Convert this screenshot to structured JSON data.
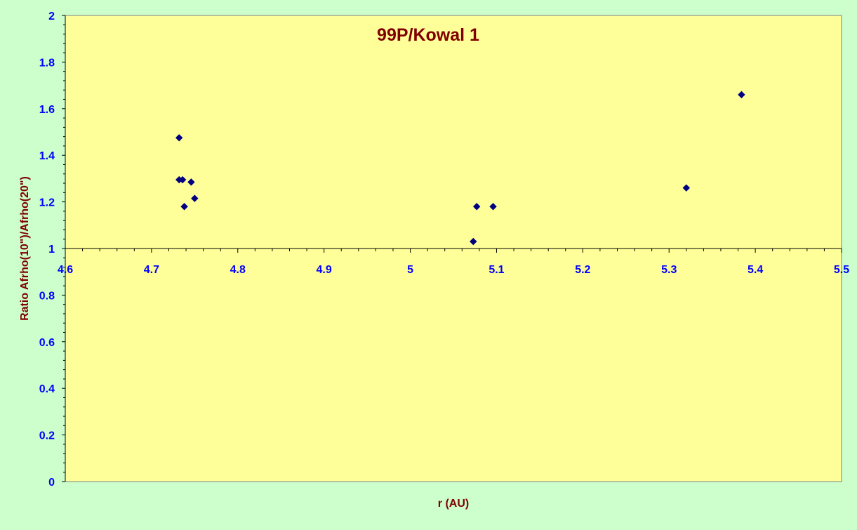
{
  "colors": {
    "background": "#ccffcc",
    "plot_area": "#ffff99",
    "title": "#800000",
    "axis_title": "#800000",
    "tick_label": "#0000ff",
    "marker": "#000080",
    "axis_line": "#000000"
  },
  "chart_data": {
    "type": "scatter",
    "title": "99P/Kowal 1",
    "xlabel": "r (AU)",
    "ylabel": "Ratio Afrho(10\")/Afrho(20\")",
    "xlim": [
      4.6,
      5.5
    ],
    "ylim": [
      0,
      2
    ],
    "x_axis_crosses_y_at": 1,
    "x_ticks": [
      "4.6",
      "4.7",
      "4.8",
      "4.9",
      "5",
      "5.1",
      "5.2",
      "5.3",
      "5.4",
      "5.5"
    ],
    "y_ticks": [
      "0",
      "0.2",
      "0.4",
      "0.6",
      "0.8",
      "1",
      "1.2",
      "1.4",
      "1.6",
      "1.8",
      "2"
    ],
    "grid": false,
    "legend": "none",
    "marker": "diamond",
    "series": [
      {
        "points": [
          {
            "x": 4.732,
            "y": 1.475
          },
          {
            "x": 4.732,
            "y": 1.295
          },
          {
            "x": 4.736,
            "y": 1.295
          },
          {
            "x": 4.746,
            "y": 1.285
          },
          {
            "x": 4.75,
            "y": 1.215
          },
          {
            "x": 4.738,
            "y": 1.18
          },
          {
            "x": 5.073,
            "y": 1.03
          },
          {
            "x": 5.077,
            "y": 1.18
          },
          {
            "x": 5.096,
            "y": 1.18
          },
          {
            "x": 5.32,
            "y": 1.26
          },
          {
            "x": 5.384,
            "y": 1.66
          }
        ]
      }
    ]
  }
}
